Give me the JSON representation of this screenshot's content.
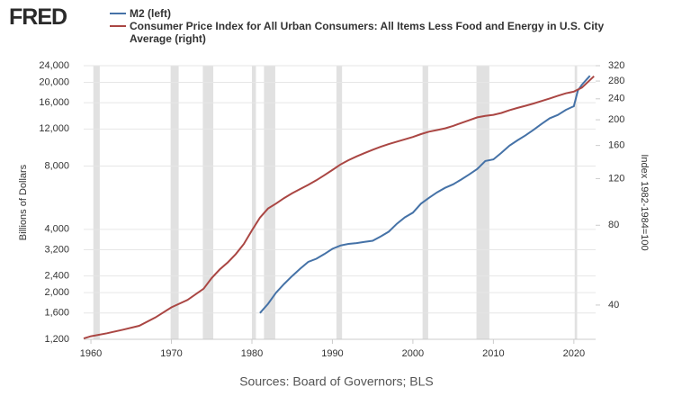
{
  "logo": "FRED",
  "chart_data": {
    "type": "line",
    "log_scale": true,
    "grid": true,
    "y_label": "Billions of Dollars",
    "y2_label": "Index 1982-1984=100",
    "source": "Sources: Board of Governors; BLS",
    "xlim": [
      1959.1,
      2022.7
    ],
    "xticks": [
      1960,
      1970,
      1980,
      1990,
      2000,
      2010,
      2020
    ],
    "ylim": [
      1200,
      24000
    ],
    "yticks": [
      {
        "value": 1200,
        "label": "1,200"
      },
      {
        "value": 1600,
        "label": "1,600"
      },
      {
        "value": 2000,
        "label": "2,000"
      },
      {
        "value": 2400,
        "label": "2,400"
      },
      {
        "value": 3200,
        "label": "3,200"
      },
      {
        "value": 4000,
        "label": "4,000"
      },
      {
        "value": 8000,
        "label": "8,000"
      },
      {
        "value": 12000,
        "label": "12,000"
      },
      {
        "value": 16000,
        "label": "16,000"
      },
      {
        "value": 20000,
        "label": "20,000"
      },
      {
        "value": 24000,
        "label": "24,000"
      }
    ],
    "y2lim": [
      29.7,
      320
    ],
    "y2ticks": [
      40,
      80,
      120,
      160,
      200,
      240,
      280,
      320
    ],
    "recessions": [
      [
        1960.3,
        1961.1
      ],
      [
        1969.9,
        1970.9
      ],
      [
        1973.9,
        1975.2
      ],
      [
        1980.0,
        1980.5
      ],
      [
        1981.5,
        1982.9
      ],
      [
        1990.5,
        1991.2
      ],
      [
        2001.2,
        2001.9
      ],
      [
        2007.9,
        2009.5
      ],
      [
        2020.1,
        2020.4
      ]
    ],
    "recession_color": "#e1e1e1",
    "series": [
      {
        "name": "M2 (left)",
        "color": "#4572a7",
        "x": [
          1981,
          1982,
          1983,
          1984,
          1985,
          1986,
          1987,
          1988,
          1989,
          1990,
          1991,
          1992,
          1993,
          1994,
          1995,
          1996,
          1997,
          1998,
          1999,
          2000,
          2001,
          2002,
          2003,
          2004,
          2005,
          2006,
          2007,
          2008,
          2009,
          2010,
          2011,
          2012,
          2013,
          2014,
          2015,
          2016,
          2017,
          2018,
          2019,
          2020,
          2020.5,
          2021,
          2022
        ],
        "values": [
          1600,
          1770,
          2000,
          2200,
          2400,
          2600,
          2800,
          2900,
          3050,
          3230,
          3350,
          3410,
          3440,
          3490,
          3530,
          3700,
          3900,
          4250,
          4560,
          4800,
          5300,
          5650,
          6000,
          6300,
          6550,
          6900,
          7300,
          7750,
          8450,
          8600,
          9250,
          10000,
          10600,
          11200,
          11900,
          12700,
          13500,
          14000,
          14800,
          15400,
          18300,
          19500,
          21500
        ]
      },
      {
        "name": "Consumer Price Index for All Urban Consumers: All Items Less Food and Energy in U.S. City Average (right)",
        "color": "#aa4643",
        "axis": "y2",
        "x": [
          1959.1,
          1960,
          1962,
          1964,
          1966,
          1968,
          1970,
          1972,
          1974,
          1975,
          1976,
          1977,
          1978,
          1979,
          1980,
          1981,
          1982,
          1983,
          1984,
          1985,
          1986,
          1987,
          1988,
          1989,
          1990,
          1991,
          1992,
          1993,
          1994,
          1995,
          1996,
          1997,
          1998,
          1999,
          2000,
          2001,
          2002,
          2003,
          2004,
          2005,
          2006,
          2007,
          2008,
          2009,
          2010,
          2011,
          2012,
          2013,
          2014,
          2015,
          2016,
          2017,
          2018,
          2019,
          2020,
          2021,
          2022.5
        ],
        "values": [
          29.9,
          30.5,
          31.3,
          32.3,
          33.4,
          35.9,
          39.2,
          41.8,
          46.1,
          50.6,
          54.5,
          57.9,
          62.3,
          68.0,
          76.5,
          85.5,
          92.5,
          96.6,
          101.3,
          105.6,
          109.6,
          113.6,
          118.3,
          123.6,
          129.3,
          135.6,
          140.8,
          145.5,
          149.8,
          154.2,
          158.2,
          161.9,
          165.4,
          168.8,
          172.2,
          176.6,
          180.4,
          183.0,
          185.7,
          189.6,
          194.5,
          199.3,
          204.3,
          206.8,
          208.8,
          212.3,
          217.4,
          221.8,
          225.9,
          230.4,
          235.5,
          240.7,
          246.4,
          251.8,
          255.5,
          264.7,
          292
        ]
      }
    ]
  }
}
